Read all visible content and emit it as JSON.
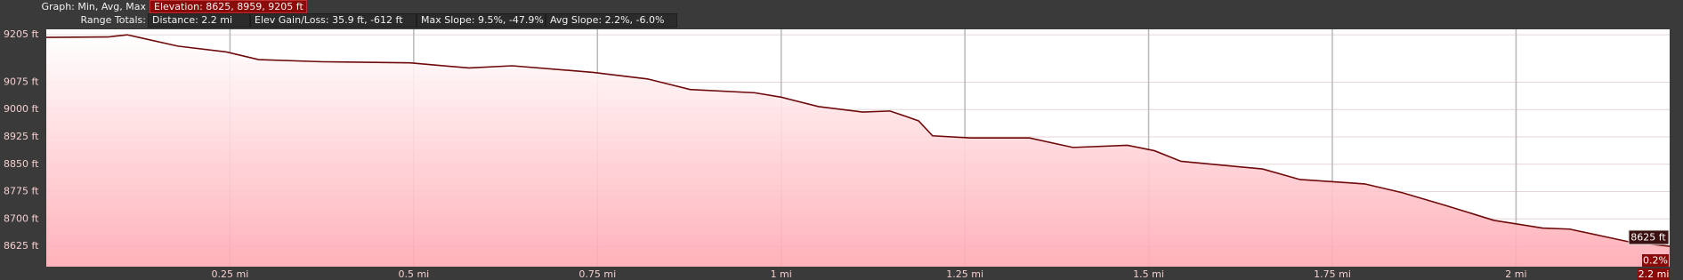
{
  "header": {
    "graph_label": "Graph: Min, Avg, Max",
    "elevation": "Elevation: 8625, 8959, 9205 ft",
    "range_label": "Range Totals:",
    "distance": "Distance: 2.2 mi",
    "elev_gain_loss": "Elev Gain/Loss: 35.9 ft, -612 ft",
    "max_slope": "Max Slope: 9.5%, -47.9%",
    "avg_slope": "Avg Slope: 2.2%, -6.0%"
  },
  "cursor": {
    "elevation_label": "8625 ft",
    "slope_label": "0.2%",
    "distance_label": "2.2 mi"
  },
  "chart_data": {
    "type": "area",
    "color": "#6e0a0a",
    "x": [
      0,
      0.084,
      0.11,
      0.128,
      0.179,
      0.245,
      0.289,
      0.377,
      0.495,
      0.575,
      0.634,
      0.744,
      0.818,
      0.876,
      0.964,
      1.0,
      1.051,
      1.111,
      1.148,
      1.17,
      1.187,
      1.206,
      1.258,
      1.338,
      1.397,
      1.471,
      1.508,
      1.544,
      1.655,
      1.706,
      1.794,
      1.845,
      1.904,
      1.97,
      2.036,
      2.073,
      2.154,
      2.209
    ],
    "values": [
      9198,
      9199,
      9205,
      9197,
      9174,
      9158,
      9137,
      9131,
      9128,
      9114,
      9120,
      9102,
      9084,
      9055,
      9046,
      9034,
      9008,
      8993,
      8996,
      8981,
      8969,
      8928,
      8922,
      8922,
      8896,
      8902,
      8887,
      8858,
      8837,
      8808,
      8796,
      8772,
      8737,
      8696,
      8675,
      8672,
      8637,
      8625
    ],
    "xlim": [
      0,
      2.209
    ],
    "ylim": [
      8569,
      9220
    ],
    "xticks": [
      {
        "value": 0.25,
        "label": "0.25 mi"
      },
      {
        "value": 0.5,
        "label": "0.5 mi"
      },
      {
        "value": 0.75,
        "label": "0.75 mi"
      },
      {
        "value": 1,
        "label": "1 mi"
      },
      {
        "value": 1.25,
        "label": "1.25 mi"
      },
      {
        "value": 1.5,
        "label": "1.5 mi"
      },
      {
        "value": 1.75,
        "label": "1.75 mi"
      },
      {
        "value": 2,
        "label": "2 mi"
      }
    ],
    "yticks": [
      {
        "value": 8625,
        "label": "8625 ft"
      },
      {
        "value": 8700,
        "label": "8700 ft"
      },
      {
        "value": 8775,
        "label": "8775 ft"
      },
      {
        "value": 8850,
        "label": "8850 ft"
      },
      {
        "value": 8925,
        "label": "8925 ft"
      },
      {
        "value": 9000,
        "label": "9000 ft"
      },
      {
        "value": 9075,
        "label": "9075 ft"
      },
      {
        "value": 9205,
        "label": "9205 ft"
      }
    ],
    "grid": true
  }
}
